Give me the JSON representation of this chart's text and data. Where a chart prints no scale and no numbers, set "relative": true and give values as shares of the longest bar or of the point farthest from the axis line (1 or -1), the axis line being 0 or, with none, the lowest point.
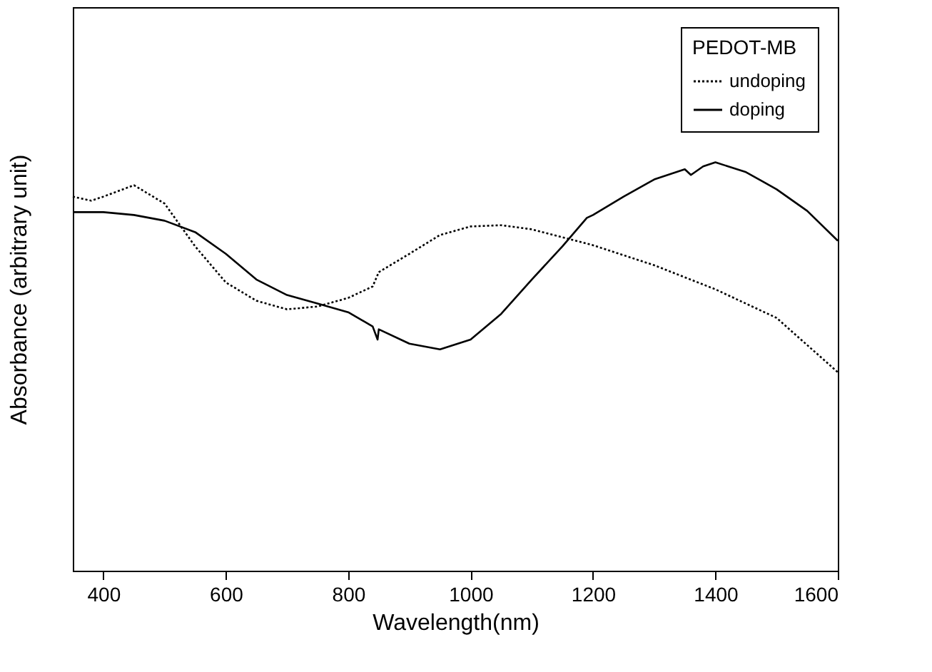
{
  "chart_data": {
    "type": "line",
    "relative": true,
    "xlabel": "Wavelength(nm)",
    "ylabel": "Absorbance (arbitrary unit)",
    "legend_title": "PEDOT-MB",
    "legend": "top right",
    "grid": false,
    "tick_labels": "x",
    "xlim": [
      350,
      1600
    ],
    "xticks": [
      400,
      600,
      800,
      1000,
      1200,
      1400,
      1600
    ],
    "series": [
      {
        "name": "undoping",
        "color": "#000000",
        "line_style": "dotted",
        "x": [
          350,
          380,
          400,
          450,
          500,
          550,
          600,
          650,
          700,
          750,
          800,
          840,
          850,
          900,
          950,
          1000,
          1050,
          1100,
          1200,
          1300,
          1400,
          1500,
          1600
        ],
        "values": [
          0.916,
          0.906,
          0.916,
          0.944,
          0.899,
          0.794,
          0.706,
          0.661,
          0.64,
          0.647,
          0.668,
          0.696,
          0.731,
          0.776,
          0.822,
          0.843,
          0.846,
          0.836,
          0.797,
          0.748,
          0.689,
          0.619,
          0.486
        ]
      },
      {
        "name": "doping",
        "color": "#000000",
        "line_style": "solid",
        "x": [
          350,
          400,
          450,
          500,
          550,
          600,
          650,
          700,
          750,
          800,
          840,
          848,
          850,
          900,
          950,
          1000,
          1050,
          1100,
          1150,
          1190,
          1200,
          1250,
          1300,
          1350,
          1360,
          1380,
          1400,
          1450,
          1500,
          1550,
          1600
        ],
        "values": [
          0.878,
          0.878,
          0.871,
          0.857,
          0.829,
          0.776,
          0.713,
          0.675,
          0.654,
          0.633,
          0.598,
          0.566,
          0.591,
          0.556,
          0.542,
          0.566,
          0.629,
          0.713,
          0.794,
          0.864,
          0.871,
          0.916,
          0.958,
          0.983,
          0.969,
          0.99,
          1,
          0.976,
          0.934,
          0.881,
          0.808
        ]
      }
    ]
  }
}
